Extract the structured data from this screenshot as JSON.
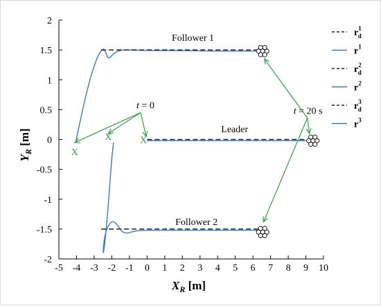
{
  "chart_data": {
    "type": "line",
    "title": "",
    "xlabel": {
      "main": "X",
      "sub": "R",
      "unit": "[m]"
    },
    "ylabel": {
      "main": "Y",
      "sub": "R",
      "unit": "[m]"
    },
    "xlim": [
      -5,
      10
    ],
    "ylim": [
      -2,
      2
    ],
    "xticks": [
      "-5",
      "-4",
      "-3",
      "-2",
      "-1",
      "0",
      "1",
      "2",
      "3",
      "4",
      "5",
      "6",
      "7",
      "8",
      "9",
      "10"
    ],
    "yticks": [
      "2",
      "1.5",
      "1",
      "0.5",
      "0",
      "-0.5",
      "-1",
      "-1.5",
      "-2"
    ],
    "grid": false,
    "legend_position": "right-outside",
    "series": [
      {
        "name": "r_d^1",
        "style": "dashed",
        "color": "#222222",
        "x": [
          -2.6,
          6.6
        ],
        "y": [
          1.5,
          1.5
        ]
      },
      {
        "name": "r^1",
        "style": "solid",
        "color": "#3a78c2",
        "x": [
          -4.05,
          -3.8,
          -3.5,
          -3.2,
          -2.9,
          -2.7,
          -2.5,
          -2.4,
          -2.3,
          -2.2,
          -2.1,
          -1.9,
          -1.6,
          -1.3,
          -1.0,
          0,
          2,
          4,
          6.6
        ],
        "y": [
          -0.05,
          0.3,
          0.7,
          1.05,
          1.32,
          1.45,
          1.52,
          1.5,
          1.42,
          1.36,
          1.37,
          1.44,
          1.49,
          1.5,
          1.5,
          1.49,
          1.49,
          1.48,
          1.48
        ]
      },
      {
        "name": "r_d^2",
        "style": "dashed",
        "color": "#222222",
        "x": [
          0,
          9.4
        ],
        "y": [
          0,
          0
        ]
      },
      {
        "name": "r^2",
        "style": "solid",
        "color": "#3a78c2",
        "x": [
          0,
          2,
          4,
          6,
          8,
          9.4
        ],
        "y": [
          -0.02,
          -0.02,
          -0.02,
          -0.02,
          -0.02,
          -0.02
        ]
      },
      {
        "name": "r_d^3",
        "style": "dashed",
        "color": "#222222",
        "x": [
          -2.6,
          6.6
        ],
        "y": [
          -1.5,
          -1.5
        ]
      },
      {
        "name": "r^3",
        "style": "solid",
        "color": "#3a78c2",
        "x": [
          -1.9,
          -2.0,
          -2.1,
          -2.2,
          -2.3,
          -2.4,
          -2.5,
          -2.45,
          -2.3,
          -2.1,
          -1.95,
          -1.75,
          -1.55,
          -1.35,
          -1.1,
          -0.8,
          -0.3,
          1,
          3,
          5,
          6.6
        ],
        "y": [
          -0.05,
          -0.3,
          -0.7,
          -1.1,
          -1.45,
          -1.75,
          -1.95,
          -1.7,
          -1.5,
          -1.4,
          -1.37,
          -1.4,
          -1.49,
          -1.56,
          -1.57,
          -1.54,
          -1.52,
          -1.52,
          -1.52,
          -1.52,
          -1.52
        ]
      }
    ],
    "annotations": [
      {
        "id": "follower1",
        "text": "Follower 1",
        "x": 1.4,
        "y": 1.65
      },
      {
        "id": "leader",
        "text": "Leader",
        "x": 4.2,
        "y": 0.12
      },
      {
        "id": "follower2",
        "text": "Follower 2",
        "x": 1.6,
        "y": -1.43
      },
      {
        "id": "t0",
        "text_main": "t",
        "text_rest": " = 0",
        "x": -0.6,
        "y": 0.52
      },
      {
        "id": "t20",
        "text_main": "t",
        "text_rest": " = 20 s",
        "x": 8.3,
        "y": 0.43
      }
    ],
    "start_markers": [
      {
        "label": "X",
        "x": -4.1,
        "y": -0.2
      },
      {
        "label": "X",
        "x": -2.2,
        "y": 0.05
      },
      {
        "label": "X",
        "x": -0.2,
        "y": 0.0
      }
    ],
    "end_markers": [
      {
        "x": 6.55,
        "y": 1.48
      },
      {
        "x": 9.4,
        "y": -0.02
      },
      {
        "x": 6.55,
        "y": -1.55
      }
    ],
    "arrows": [
      {
        "from": "t0",
        "to": [
          -4.1,
          -0.05
        ]
      },
      {
        "from": "t0",
        "to": [
          -2.2,
          0.1
        ]
      },
      {
        "from": "t0",
        "to": [
          -0.05,
          0.05
        ]
      },
      {
        "from": "t20",
        "to": [
          6.65,
          1.35
        ]
      },
      {
        "from": "t20",
        "to": [
          9.2,
          0.1
        ]
      },
      {
        "from": "t20",
        "to": [
          6.6,
          -1.38
        ]
      }
    ],
    "annotation_color": "#2ea043",
    "legend": [
      {
        "base": "r",
        "sub": "d",
        "sup": "1",
        "style": "dashed"
      },
      {
        "base": "r",
        "sub": "",
        "sup": "1",
        "style": "solid"
      },
      {
        "base": "r",
        "sub": "d",
        "sup": "2",
        "style": "dashed"
      },
      {
        "base": "r",
        "sub": "",
        "sup": "2",
        "style": "solid"
      },
      {
        "base": "r",
        "sub": "d",
        "sup": "3",
        "style": "dashed"
      },
      {
        "base": "r",
        "sub": "",
        "sup": "3",
        "style": "solid"
      }
    ]
  }
}
